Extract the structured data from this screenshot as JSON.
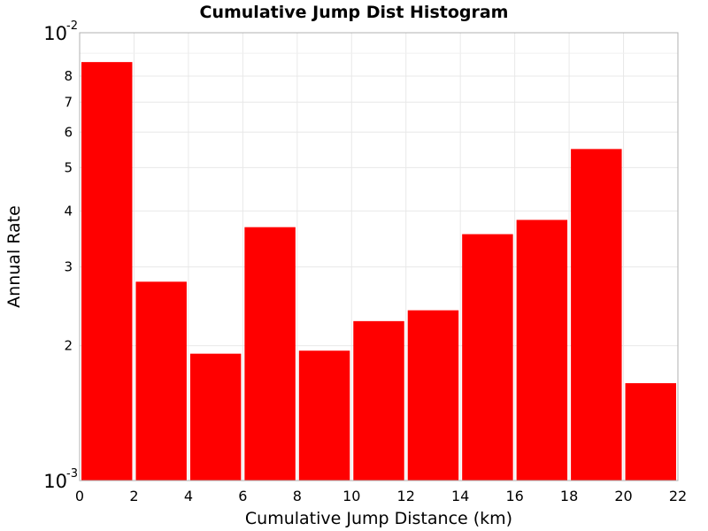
{
  "chart_data": {
    "type": "bar",
    "title": "Cumulative Jump Dist Histogram",
    "xlabel": "Cumulative Jump Distance (km)",
    "ylabel": "Annual Rate",
    "xlim": [
      0,
      22
    ],
    "ylim": [
      0.001,
      0.01
    ],
    "yscale": "log",
    "grid": true,
    "bar_color": "#ff0000",
    "bin_width": 2,
    "x": [
      1,
      3,
      5,
      7,
      9,
      11,
      13,
      15,
      17,
      19,
      21
    ],
    "values": [
      0.0086,
      0.00278,
      0.00192,
      0.00368,
      0.00195,
      0.00227,
      0.0024,
      0.00355,
      0.00382,
      0.0055,
      0.00165
    ],
    "x_ticks": [
      "0",
      "2",
      "4",
      "6",
      "8",
      "10",
      "12",
      "14",
      "16",
      "18",
      "20",
      "22"
    ],
    "y_ticks_major": [
      {
        "value": 0.001,
        "base": "10",
        "exp": "-3"
      },
      {
        "value": 0.01,
        "base": "10",
        "exp": "-2"
      }
    ],
    "y_ticks_minor": [
      {
        "value": 0.002,
        "label": "2"
      },
      {
        "value": 0.003,
        "label": "3"
      },
      {
        "value": 0.004,
        "label": "4"
      },
      {
        "value": 0.005,
        "label": "5"
      },
      {
        "value": 0.006,
        "label": "6"
      },
      {
        "value": 0.007,
        "label": "7"
      },
      {
        "value": 0.008,
        "label": "8"
      }
    ]
  }
}
